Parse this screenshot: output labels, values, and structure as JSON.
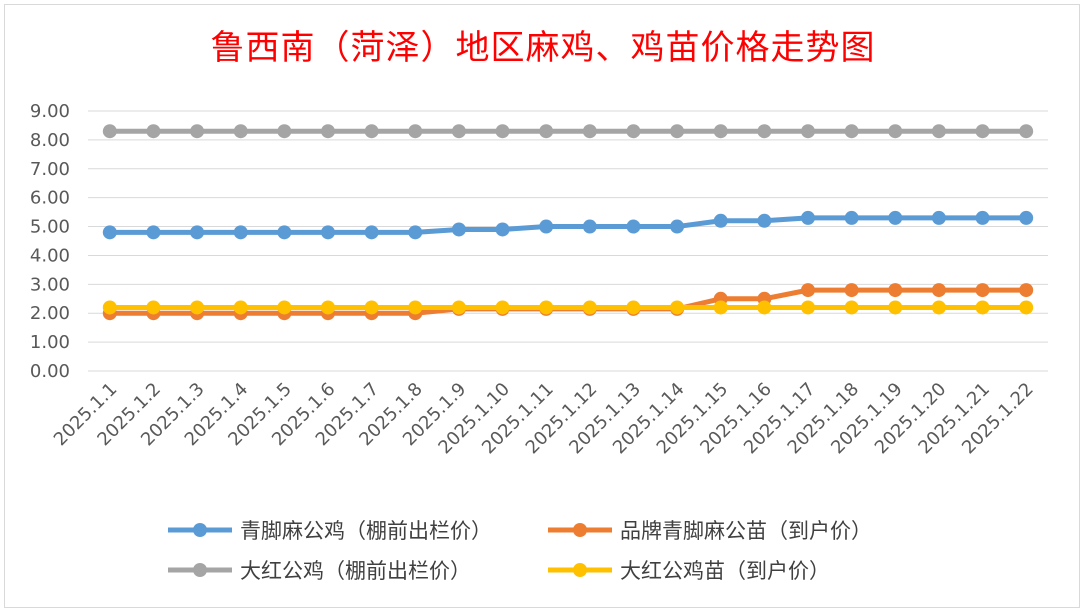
{
  "chart_data": {
    "type": "line",
    "title": "鲁西南（菏泽）地区麻鸡、鸡苗价格走势图",
    "xlabel": "",
    "ylabel": "",
    "ylim": [
      0,
      9
    ],
    "yticks": [
      "0.00",
      "1.00",
      "2.00",
      "3.00",
      "4.00",
      "5.00",
      "6.00",
      "7.00",
      "8.00",
      "9.00"
    ],
    "grid": true,
    "legend_position": "bottom",
    "categories": [
      "2025.1.1",
      "2025.1.2",
      "2025.1.3",
      "2025.1.4",
      "2025.1.5",
      "2025.1.6",
      "2025.1.7",
      "2025.1.8",
      "2025.1.9",
      "2025.1.10",
      "2025.1.11",
      "2025.1.12",
      "2025.1.13",
      "2025.1.14",
      "2025.1.15",
      "2025.1.16",
      "2025.1.17",
      "2025.1.18",
      "2025.1.19",
      "2025.1.20",
      "2025.1.21",
      "2025.1.22"
    ],
    "series": [
      {
        "name": "青脚麻公鸡（棚前出栏价）",
        "color": "#5b9bd5",
        "values": [
          4.8,
          4.8,
          4.8,
          4.8,
          4.8,
          4.8,
          4.8,
          4.8,
          4.9,
          4.9,
          5.0,
          5.0,
          5.0,
          5.0,
          5.2,
          5.2,
          5.3,
          5.3,
          5.3,
          5.3,
          5.3,
          5.3
        ]
      },
      {
        "name": "品牌青脚麻公苗（到户价）",
        "color": "#ed7d31",
        "values": [
          2.0,
          2.0,
          2.0,
          2.0,
          2.0,
          2.0,
          2.0,
          2.0,
          2.15,
          2.15,
          2.15,
          2.15,
          2.15,
          2.15,
          2.5,
          2.5,
          2.8,
          2.8,
          2.8,
          2.8,
          2.8,
          2.8
        ]
      },
      {
        "name": "大红公鸡（棚前出栏价）",
        "color": "#a5a5a5",
        "values": [
          8.3,
          8.3,
          8.3,
          8.3,
          8.3,
          8.3,
          8.3,
          8.3,
          8.3,
          8.3,
          8.3,
          8.3,
          8.3,
          8.3,
          8.3,
          8.3,
          8.3,
          8.3,
          8.3,
          8.3,
          8.3,
          8.3
        ]
      },
      {
        "name": "大红公鸡苗（到户价）",
        "color": "#ffc000",
        "values": [
          2.2,
          2.2,
          2.2,
          2.2,
          2.2,
          2.2,
          2.2,
          2.2,
          2.2,
          2.2,
          2.2,
          2.2,
          2.2,
          2.2,
          2.2,
          2.2,
          2.2,
          2.2,
          2.2,
          2.2,
          2.2,
          2.2
        ]
      }
    ]
  }
}
